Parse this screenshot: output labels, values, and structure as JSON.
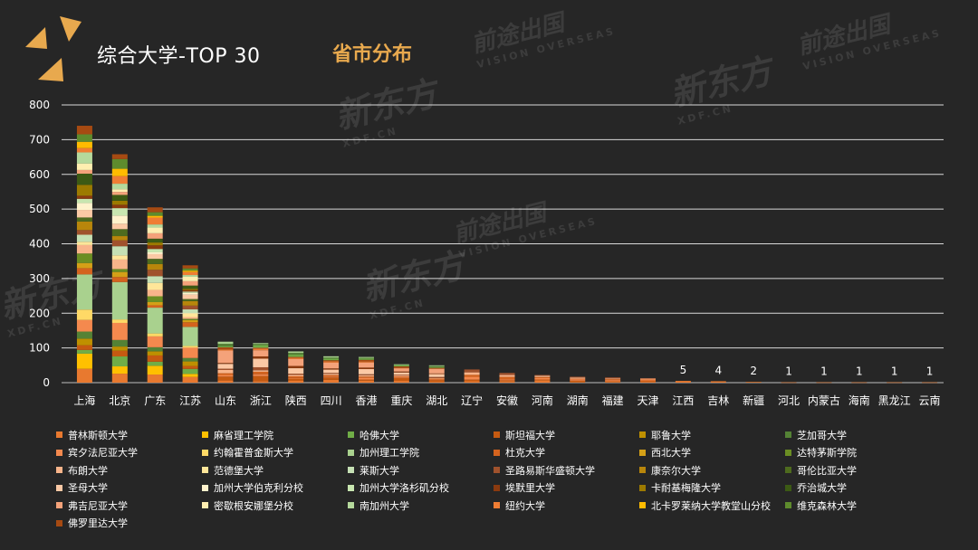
{
  "header": {
    "title": "综合大学-TOP 30",
    "subtitle": "省市分布"
  },
  "watermarks": {
    "brand": "新东方",
    "brand_url": "XDF.CN",
    "overseas": "前途出国",
    "overseas_en": "VISION OVERSEAS"
  },
  "chart_data": {
    "type": "bar",
    "stacked": true,
    "title": "综合大学-TOP 30",
    "subtitle": "省市分布",
    "ylim": [
      0,
      800
    ],
    "yticks": [
      0,
      100,
      200,
      300,
      400,
      500,
      600,
      700,
      800
    ],
    "grid": true,
    "categories": [
      "上海",
      "北京",
      "广东",
      "江苏",
      "山东",
      "浙江",
      "陕西",
      "四川",
      "香港",
      "重庆",
      "湖北",
      "辽宁",
      "安徽",
      "河南",
      "湖南",
      "福建",
      "天津",
      "江西",
      "吉林",
      "新疆",
      "河北",
      "内蒙古",
      "海南",
      "黑龙江",
      "云南"
    ],
    "totals": [
      740,
      658,
      505,
      338,
      118,
      114,
      90,
      76,
      74,
      53,
      50,
      38,
      28,
      22,
      17,
      15,
      13,
      5,
      4,
      2,
      1,
      1,
      1,
      1,
      1
    ],
    "value_labels": {
      "江西": "5",
      "吉林": "4",
      "新疆": "2",
      "河北": "1",
      "内蒙古": "1",
      "海南": "1",
      "黑龙江": "1",
      "云南": "1"
    },
    "series_names": [
      "普林斯顿大学",
      "麻省理工学院",
      "哈佛大学",
      "斯坦福大学",
      "耶鲁大学",
      "芝加哥大学",
      "宾夕法尼亚大学",
      "约翰霍普金斯大学",
      "加州理工学院",
      "杜克大学",
      "西北大学",
      "达特茅斯学院",
      "布朗大学",
      "范德堡大学",
      "莱斯大学",
      "圣路易斯华盛顿大学",
      "康奈尔大学",
      "哥伦比亚大学",
      "圣母大学",
      "加州大学伯克利分校",
      "加州大学洛杉矶分校",
      "埃默里大学",
      "卡耐基梅隆大学",
      "乔治城大学",
      "弗吉尼亚大学",
      "密歇根安娜堡分校",
      "南加州大学",
      "纽约大学",
      "北卡罗莱纳大学教堂山分校",
      "维克森林大学",
      "佛罗里达大学"
    ],
    "series_colors": [
      "#e8792f",
      "#ffc000",
      "#70ad47",
      "#c55a11",
      "#bf9000",
      "#548235",
      "#f4894e",
      "#ffd966",
      "#a9d18e",
      "#d4631e",
      "#d4a017",
      "#6b8e23",
      "#f8b48a",
      "#ffe699",
      "#c5e0b4",
      "#a0522d",
      "#b8860b",
      "#4e6b1e",
      "#fbc9a5",
      "#fff2cc",
      "#c8e6b0",
      "#8b3a0f",
      "#9c7a00",
      "#3c5a14",
      "#f4a27a",
      "#ffeeb0",
      "#b5d99c",
      "#ef7d34",
      "#ffbb00",
      "#5e8b2d",
      "#a64a12"
    ]
  },
  "legend": {
    "items": [
      "普林斯顿大学",
      "麻省理工学院",
      "哈佛大学",
      "斯坦福大学",
      "耶鲁大学",
      "芝加哥大学",
      "宾夕法尼亚大学",
      "约翰霍普金斯大学",
      "加州理工学院",
      "杜克大学",
      "西北大学",
      "达特茅斯学院",
      "布朗大学",
      "范德堡大学",
      "莱斯大学",
      "圣路易斯华盛顿大学",
      "康奈尔大学",
      "哥伦比亚大学",
      "圣母大学",
      "加州大学伯克利分校",
      "加州大学洛杉矶分校",
      "埃默里大学",
      "卡耐基梅隆大学",
      "乔治城大学",
      "弗吉尼亚大学",
      "密歇根安娜堡分校",
      "南加州大学",
      "纽约大学",
      "北卡罗莱纳大学教堂山分校",
      "维克森林大学",
      "佛罗里达大学"
    ]
  }
}
